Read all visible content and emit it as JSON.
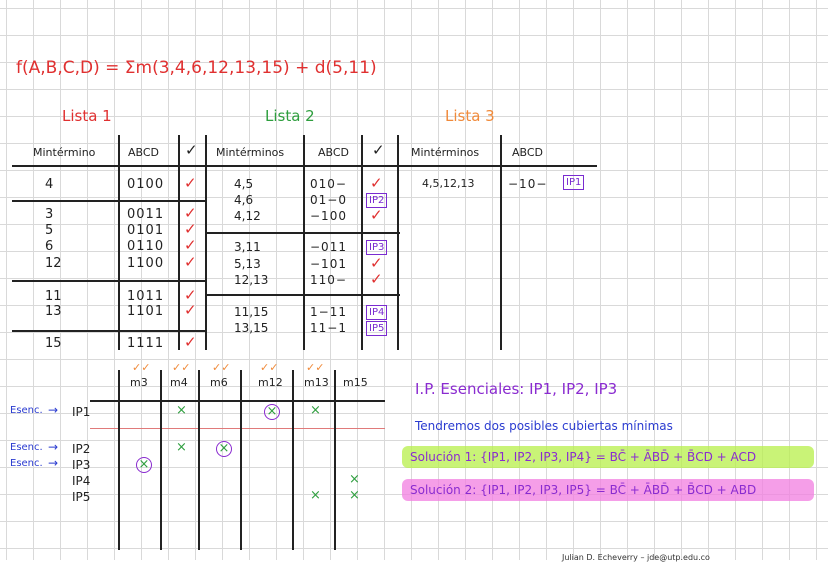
{
  "formula": "f(A,B,C,D) = Σm(3,4,6,12,13,15) + d(5,11)",
  "lists": {
    "lista1": "Lista 1",
    "lista2": "Lista 2",
    "lista3": "Lista 3"
  },
  "headers": {
    "mint1": "Mintérmino",
    "abcd1": "ABCD",
    "check1": "✓",
    "mint2": "Mintérminos",
    "abcd2": "ABCD",
    "check2": "✓",
    "mint3": "Mintérminos",
    "abcd3": "ABCD"
  },
  "table1": {
    "g0": [
      {
        "m": "4",
        "b": "0100"
      }
    ],
    "g1": [
      {
        "m": "3",
        "b": "0011"
      },
      {
        "m": "5",
        "b": "0101"
      },
      {
        "m": "6",
        "b": "0110"
      },
      {
        "m": "12",
        "b": "1100"
      }
    ],
    "g2": [
      {
        "m": "11",
        "b": "1011"
      },
      {
        "m": "13",
        "b": "1101"
      }
    ],
    "g3": [
      {
        "m": "15",
        "b": "1111"
      }
    ]
  },
  "table2": {
    "g0": [
      {
        "m": "4,5",
        "b": "010−"
      },
      {
        "m": "4,6",
        "b": "01−0",
        "tag": "IP2"
      },
      {
        "m": "4,12",
        "b": "−100"
      }
    ],
    "g1": [
      {
        "m": "3,11",
        "b": "−011",
        "tag": "IP3"
      },
      {
        "m": "5,13",
        "b": "−101"
      },
      {
        "m": "12,13",
        "b": "110−"
      }
    ],
    "g2": [
      {
        "m": "11,15",
        "b": "1−11",
        "tag": "IP4"
      },
      {
        "m": "13,15",
        "b": "11−1",
        "tag": "IP5"
      }
    ]
  },
  "table3": [
    {
      "m": "4,5,12,13",
      "b": "−10−",
      "tag": "IP1"
    }
  ],
  "pi_chart": {
    "columns": [
      "m3",
      "m4",
      "m6",
      "m12",
      "m13",
      "m15"
    ],
    "rows": [
      {
        "label": "IP1",
        "esenc": "Esenc."
      },
      {
        "label": "IP2",
        "esenc": "Esenc."
      },
      {
        "label": "IP3",
        "esenc": "Esenc."
      },
      {
        "label": "IP4",
        "esenc": ""
      },
      {
        "label": "IP5",
        "esenc": ""
      }
    ]
  },
  "conclusions": {
    "essentials": "I.P. Esenciales: IP1, IP2, IP3",
    "note": "Tendremos dos posibles cubiertas mínimas",
    "sol1": "Solución 1: {IP1, IP2, IP3, IP4} = BC̄ + ĀBD̄ + B̄CD + ACD",
    "sol2": "Solución 2: {IP1, IP2, IP3, IP5} = BC̄ + ĀBD̄ + B̄CD + ABD"
  },
  "footer": "Julian D. Echeverry  –  jde@utp.edu.co",
  "colors": {
    "red": "#e03030",
    "green": "#2e9e3e",
    "orange": "#f08a3a",
    "purple": "#8a2bd0",
    "highlight_green": "#b7ef4a",
    "highlight_pink": "#f27ee0"
  }
}
